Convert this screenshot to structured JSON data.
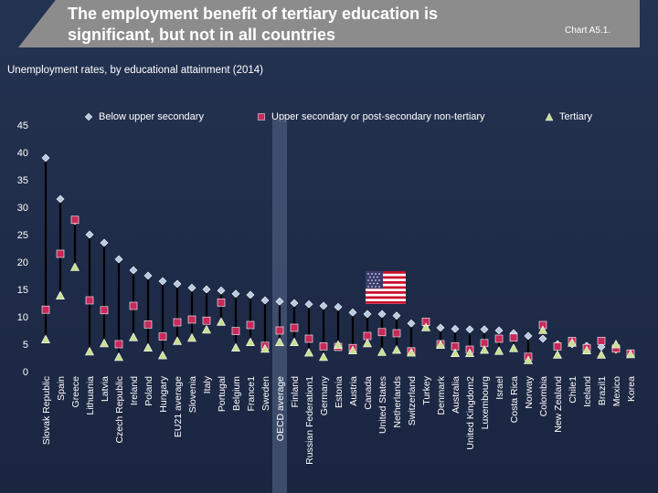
{
  "header": {
    "title_line1": "The employment benefit of tertiary education is",
    "title_line2": "significant, but not in all countries",
    "chart_ref": "Chart A5.1."
  },
  "subtitle": "Unemployment rates, by educational attainment (2014)",
  "legend": {
    "below": "Below upper secondary",
    "upper": "Upper secondary or post-secondary non-tertiary",
    "tertiary": "Tertiary"
  },
  "colors": {
    "below": "#b8c8e0",
    "upper": "#c8285a",
    "tertiary": "#c8e08c",
    "oecd_highlight": "#4a5a7a",
    "range_line": "#000000"
  },
  "chart_data": {
    "type": "scatter",
    "title": "Unemployment rates, by educational attainment (2014)",
    "xlabel": "",
    "ylabel": "",
    "ylim": [
      0,
      45
    ],
    "yticks": [
      0,
      5,
      10,
      15,
      20,
      25,
      30,
      35,
      40,
      45
    ],
    "highlight_category": "OECD average",
    "categories": [
      "Slovak Republic",
      "Spain",
      "Greece",
      "Lithuania",
      "Latvia",
      "Czech Republic",
      "Ireland",
      "Poland",
      "Hungary",
      "EU21 average",
      "Slovenia",
      "Italy",
      "Portugal",
      "Belgium",
      "France1",
      "Sweden",
      "OECD average",
      "Finland",
      "Russian Federation1",
      "Germany",
      "Estonia",
      "Austria",
      "Canada",
      "United States",
      "Netherlands",
      "Switzerland",
      "Turkey",
      "Denmark",
      "Australia",
      "United Kingdom2",
      "Luxembourg",
      "Israel",
      "Costa Rica",
      "Norway",
      "Colombia",
      "New Zealand",
      "Chile1",
      "Iceland",
      "Brazil1",
      "Mexico",
      "Korea"
    ],
    "series": [
      {
        "name": "Below upper secondary",
        "marker": "diamond",
        "values": [
          39,
          31.5,
          27.5,
          25,
          23.5,
          20.5,
          18.5,
          17.5,
          16.5,
          16,
          15.3,
          15,
          14.8,
          14.2,
          14,
          13,
          12.8,
          12.5,
          12.3,
          12,
          11.8,
          10.8,
          10.5,
          10.5,
          10.2,
          8.8,
          8.5,
          8,
          7.8,
          7.7,
          7.7,
          7.5,
          7,
          6.5,
          6,
          5,
          5,
          4.7,
          4.5,
          4,
          3.3
        ]
      },
      {
        "name": "Upper secondary or post-secondary non-tertiary",
        "marker": "square",
        "values": [
          11.3,
          21.5,
          27.7,
          13,
          11.2,
          5,
          12,
          8.6,
          6.4,
          9,
          9.5,
          9.3,
          12.6,
          7.4,
          8.5,
          4.7,
          7.5,
          8,
          6,
          4.6,
          4.5,
          4.3,
          6.5,
          7.2,
          7,
          3.7,
          9.1,
          5,
          4.6,
          4,
          5.2,
          6,
          6.2,
          2.7,
          8.5,
          4.6,
          5.6,
          4.3,
          5.6,
          4.2,
          3.3
        ]
      },
      {
        "name": "Tertiary",
        "marker": "triangle",
        "values": [
          5.8,
          13.8,
          19,
          3.6,
          5.1,
          2.6,
          6.2,
          4.3,
          2.9,
          5.5,
          6.1,
          7.6,
          9,
          4.3,
          5.3,
          4.1,
          5.3,
          5.3,
          3.4,
          2.6,
          4.8,
          3.8,
          5.1,
          3.5,
          3.9,
          3.4,
          8,
          4.8,
          3.3,
          3.3,
          3.9,
          3.7,
          4.2,
          2,
          7.5,
          3,
          5.2,
          3.8,
          3,
          4.9,
          3.1
        ]
      }
    ]
  }
}
